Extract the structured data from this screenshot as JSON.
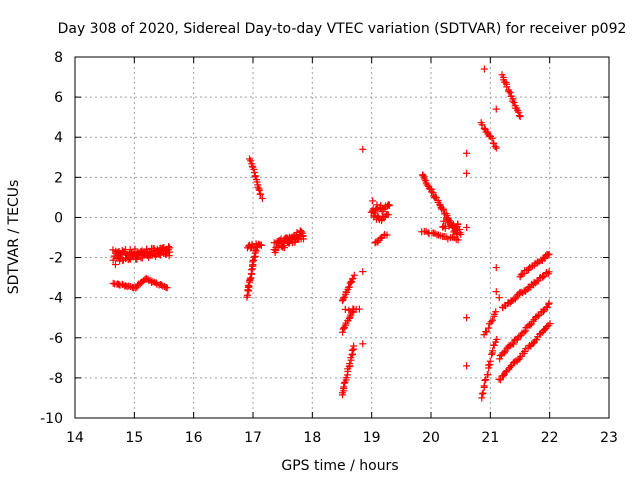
{
  "chart_data": {
    "type": "scatter",
    "title": "Day 308 of 2020, Sidereal Day-to-day VTEC variation (SDTVAR) for receiver p092",
    "xlabel": "GPS time / hours",
    "ylabel": "SDTVAR / TECUs",
    "xlim": [
      14,
      23
    ],
    "ylim": [
      -10,
      8
    ],
    "x_ticks": [
      "14",
      "15",
      "16",
      "17",
      "18",
      "19",
      "20",
      "21",
      "22",
      "23"
    ],
    "y_ticks": [
      "-10",
      "-8",
      "-6",
      "-4",
      "-2",
      "0",
      "2",
      "4",
      "6",
      "8"
    ],
    "grid": true,
    "marker": "+",
    "color": "#ff0000",
    "segments": [
      {
        "x": [
          14.65,
          15.6
        ],
        "y": [
          -1.8,
          -1.7
        ],
        "jitter": 0.22,
        "n": 70
      },
      {
        "x": [
          14.65,
          15.6
        ],
        "y": [
          -2.2,
          -1.6
        ],
        "jitter": 0.18,
        "n": 40
      },
      {
        "x": [
          14.65,
          15.05
        ],
        "y": [
          -3.3,
          -3.5
        ],
        "jitter": 0.04,
        "n": 18
      },
      {
        "x": [
          15.05,
          15.2
        ],
        "y": [
          -3.4,
          -3.05
        ],
        "jitter": 0.04,
        "n": 8
      },
      {
        "x": [
          15.2,
          15.55
        ],
        "y": [
          -3.1,
          -3.5
        ],
        "jitter": 0.04,
        "n": 16
      },
      {
        "x": [
          16.9,
          17.05
        ],
        "y": [
          -3.9,
          -1.5
        ],
        "jitter": 0.12,
        "n": 30
      },
      {
        "x": [
          16.9,
          17.15
        ],
        "y": [
          -1.5,
          -1.3
        ],
        "jitter": 0.1,
        "n": 15
      },
      {
        "x": [
          16.95,
          17.15
        ],
        "y": [
          2.9,
          1.0
        ],
        "jitter": 0.06,
        "n": 18
      },
      {
        "x": [
          17.35,
          17.85
        ],
        "y": [
          -1.5,
          -0.8
        ],
        "jitter": 0.28,
        "n": 60
      },
      {
        "x": [
          18.5,
          18.7
        ],
        "y": [
          -4.2,
          -2.9
        ],
        "jitter": 0.06,
        "n": 16
      },
      {
        "x": [
          18.5,
          18.7
        ],
        "y": [
          -5.7,
          -4.6
        ],
        "jitter": 0.06,
        "n": 14
      },
      {
        "x": [
          18.5,
          18.7
        ],
        "y": [
          -8.9,
          -6.4
        ],
        "jitter": 0.06,
        "n": 22
      },
      {
        "x": [
          18.55,
          18.8
        ],
        "y": [
          -4.6,
          -4.6
        ],
        "jitter": 0.04,
        "n": 5
      },
      {
        "x": [
          19.0,
          19.3
        ],
        "y": [
          0.4,
          0.2
        ],
        "jitter": 0.45,
        "n": 35
      },
      {
        "x": [
          19.05,
          19.25
        ],
        "y": [
          -1.3,
          -0.8
        ],
        "jitter": 0.08,
        "n": 10
      },
      {
        "x": [
          19.85,
          20.45
        ],
        "y": [
          2.1,
          -0.8
        ],
        "jitter": 0.08,
        "n": 40
      },
      {
        "x": [
          19.85,
          20.45
        ],
        "y": [
          -0.7,
          -1.1
        ],
        "jitter": 0.08,
        "n": 20
      },
      {
        "x": [
          20.2,
          20.5
        ],
        "y": [
          -0.2,
          -0.6
        ],
        "jitter": 0.3,
        "n": 25
      },
      {
        "x": [
          20.85,
          21.1
        ],
        "y": [
          4.7,
          3.5
        ],
        "jitter": 0.08,
        "n": 14
      },
      {
        "x": [
          21.2,
          21.5
        ],
        "y": [
          7.1,
          5.0
        ],
        "jitter": 0.06,
        "n": 22
      },
      {
        "x": [
          20.85,
          21.1
        ],
        "y": [
          -9.0,
          -6.0
        ],
        "jitter": 0.12,
        "n": 20
      },
      {
        "x": [
          20.9,
          21.1
        ],
        "y": [
          -5.9,
          -4.7
        ],
        "jitter": 0.08,
        "n": 10
      },
      {
        "x": [
          21.15,
          22.0
        ],
        "y": [
          -8.1,
          -5.3
        ],
        "jitter": 0.07,
        "n": 40
      },
      {
        "x": [
          21.15,
          22.0
        ],
        "y": [
          -7.0,
          -4.3
        ],
        "jitter": 0.07,
        "n": 40
      },
      {
        "x": [
          21.2,
          22.0
        ],
        "y": [
          -4.5,
          -2.7
        ],
        "jitter": 0.07,
        "n": 38
      },
      {
        "x": [
          21.5,
          22.0
        ],
        "y": [
          -2.9,
          -1.8
        ],
        "jitter": 0.06,
        "n": 24
      }
    ],
    "points": [
      {
        "x": 18.85,
        "y": 3.4
      },
      {
        "x": 20.6,
        "y": 3.2
      },
      {
        "x": 20.6,
        "y": 2.2
      },
      {
        "x": 20.6,
        "y": -0.5
      },
      {
        "x": 20.6,
        "y": -5.0
      },
      {
        "x": 20.6,
        "y": -7.4
      },
      {
        "x": 20.9,
        "y": 7.4
      },
      {
        "x": 21.1,
        "y": 5.4
      },
      {
        "x": 21.1,
        "y": -2.5
      },
      {
        "x": 21.1,
        "y": -3.7
      },
      {
        "x": 21.15,
        "y": -4.0
      },
      {
        "x": 18.85,
        "y": -2.7
      },
      {
        "x": 18.85,
        "y": -6.3
      }
    ]
  }
}
